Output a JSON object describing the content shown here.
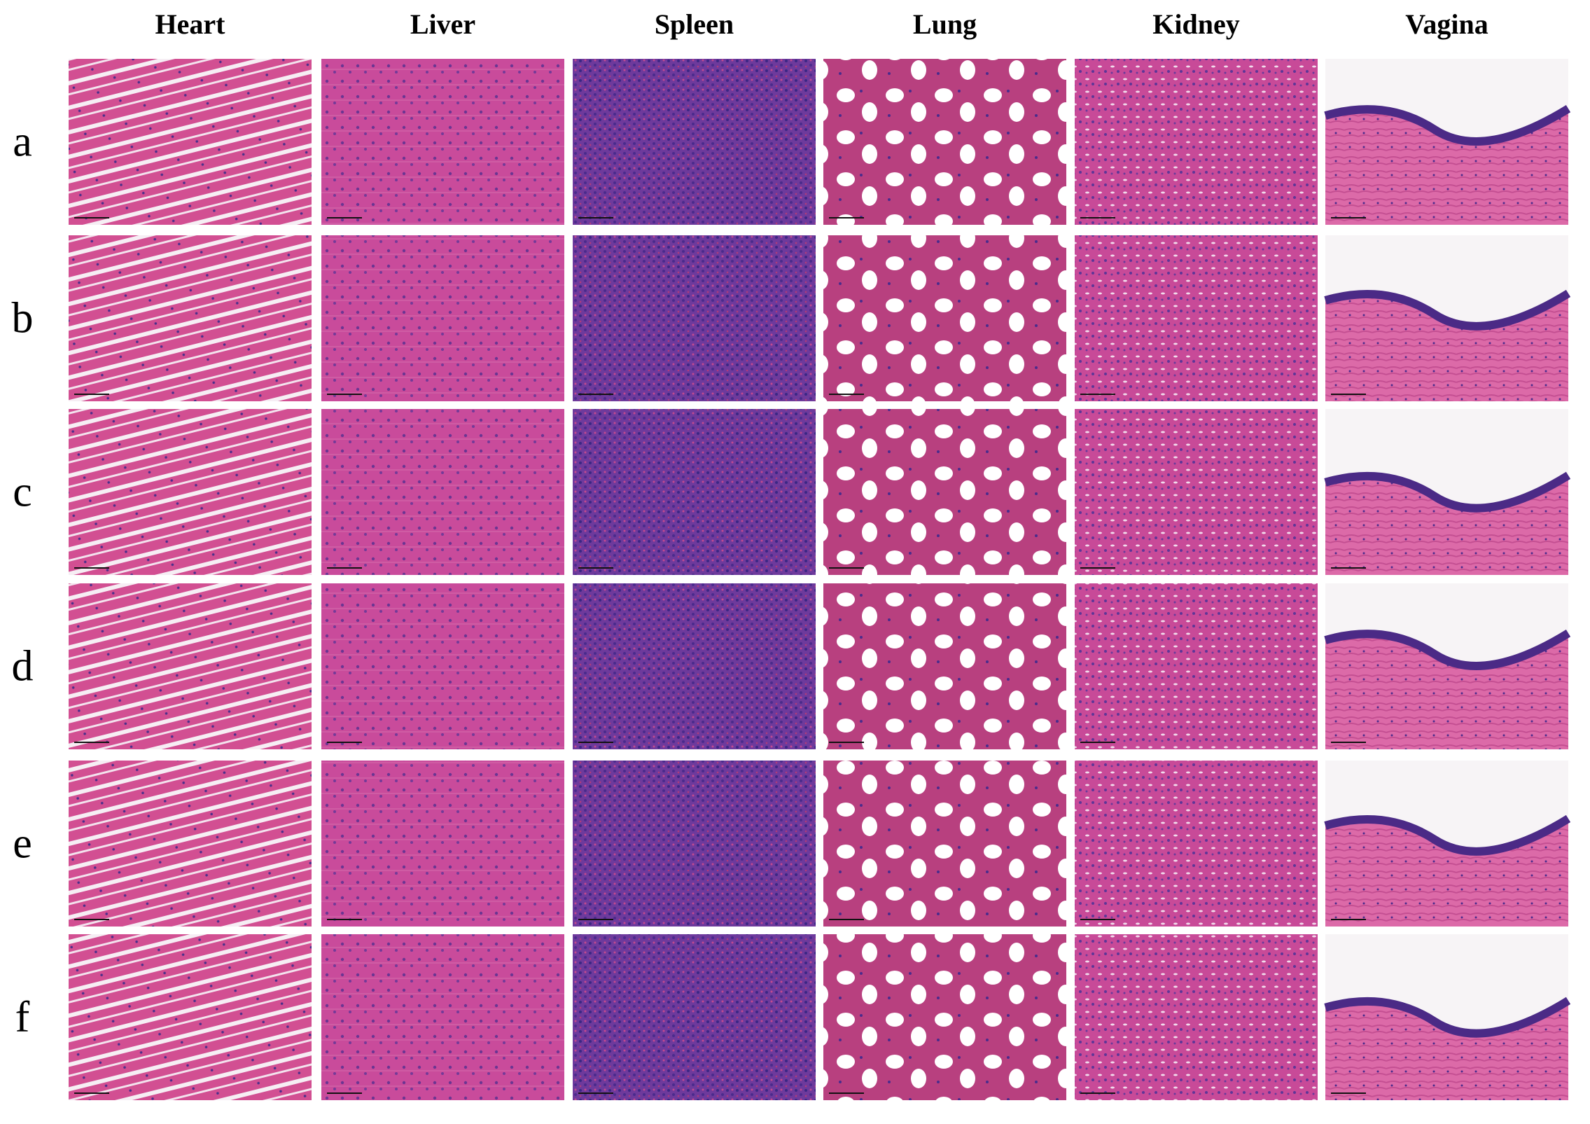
{
  "columns": [
    "Heart",
    "Liver",
    "Spleen",
    "Lung",
    "Kidney",
    "Vagina"
  ],
  "rows": [
    "a",
    "b",
    "c",
    "d",
    "e",
    "f"
  ]
}
